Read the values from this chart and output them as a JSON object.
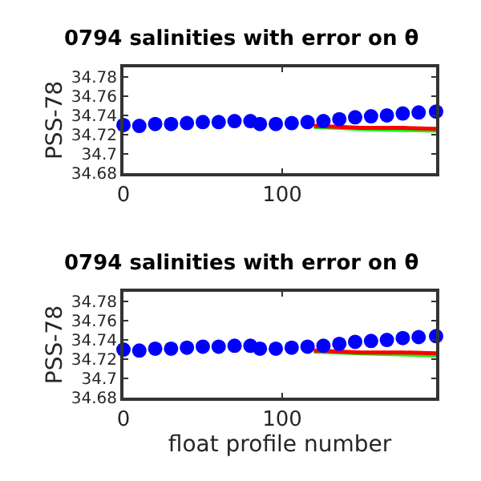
{
  "chart_data": [
    {
      "type": "line",
      "title": "0794 salinities with error on θ",
      "ylabel": "PSS-78",
      "xlim": [
        0,
        197
      ],
      "xticks": [
        0,
        100
      ],
      "ylim": [
        34.68,
        34.79
      ],
      "yticks": [
        34.68,
        34.7,
        34.72,
        34.74,
        34.76,
        34.78
      ],
      "series": [
        {
          "color": "#00ff00",
          "x": [
            120,
            150,
            175,
            197
          ],
          "values": [
            34.728,
            34.726,
            34.725,
            34.724
          ]
        },
        {
          "color": "#ff0000",
          "x": [
            120,
            150,
            175,
            197
          ],
          "values": [
            34.729,
            34.727,
            34.727,
            34.726
          ]
        },
        {
          "type": "scatter",
          "marker": "circle",
          "color": "#0000ff",
          "x": [
            0,
            10,
            20,
            30,
            40,
            50,
            60,
            70,
            80,
            86,
            96,
            106,
            116,
            126,
            136,
            146,
            156,
            166,
            176,
            186,
            197
          ],
          "values": [
            34.73,
            34.729,
            34.731,
            34.731,
            34.732,
            34.733,
            34.733,
            34.734,
            34.734,
            34.731,
            34.731,
            34.732,
            34.733,
            34.734,
            34.736,
            34.738,
            34.739,
            34.74,
            34.742,
            34.743,
            34.744
          ]
        }
      ]
    },
    {
      "type": "line",
      "title": "0794 salinities with error on θ",
      "ylabel": "PSS-78",
      "xlabel": "float profile number",
      "xlim": [
        0,
        197
      ],
      "xticks": [
        0,
        100
      ],
      "ylim": [
        34.68,
        34.79
      ],
      "yticks": [
        34.68,
        34.7,
        34.72,
        34.74,
        34.76,
        34.78
      ],
      "series": [
        {
          "color": "#00ff00",
          "x": [
            120,
            150,
            175,
            197
          ],
          "values": [
            34.728,
            34.726,
            34.725,
            34.724
          ]
        },
        {
          "color": "#ff0000",
          "x": [
            120,
            150,
            175,
            197
          ],
          "values": [
            34.729,
            34.727,
            34.727,
            34.726
          ]
        },
        {
          "type": "scatter",
          "marker": "circle",
          "color": "#0000ff",
          "x": [
            0,
            10,
            20,
            30,
            40,
            50,
            60,
            70,
            80,
            86,
            96,
            106,
            116,
            126,
            136,
            146,
            156,
            166,
            176,
            186,
            197
          ],
          "values": [
            34.73,
            34.729,
            34.731,
            34.731,
            34.732,
            34.733,
            34.733,
            34.734,
            34.734,
            34.731,
            34.731,
            34.732,
            34.733,
            34.734,
            34.736,
            34.738,
            34.739,
            34.74,
            34.742,
            34.743,
            34.744
          ]
        }
      ]
    }
  ]
}
